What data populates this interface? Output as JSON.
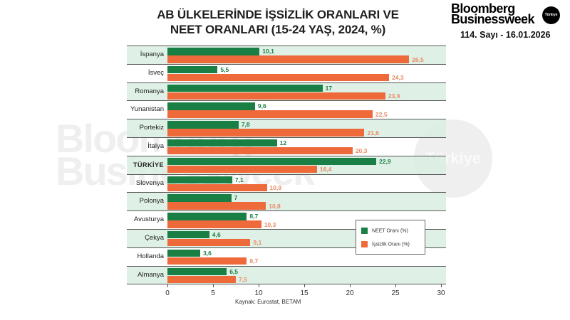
{
  "header": {
    "title_line1": "AB ÜLKELERİNDE İŞSİZLİK ORANLARI VE",
    "title_line2": "NEET ORANLARI (15-24 YAŞ, 2024, %)"
  },
  "brand": {
    "line1": "Bloomberg",
    "line2": "Businessweek",
    "badge": "Türkiye",
    "issue": "114. Sayı - 16.01.2026"
  },
  "watermark": {
    "line1": "Bloomberg",
    "line2": "Businessweek",
    "badge": "Türkiye"
  },
  "colors": {
    "neet": "#1a7f45",
    "unemployment": "#ee6a3a",
    "row_shade": "#d9eee2"
  },
  "legend": {
    "neet_label": "NEET Oranı (%)",
    "unemployment_label": "İşsizlik Oranı (%)"
  },
  "source": "Kaynak: Eurostat, BETAM",
  "chart_data": {
    "type": "bar",
    "orientation": "horizontal",
    "title": "AB ÜLKELERİNDE İŞSİZLİK ORANLARI VE NEET ORANLARI (15-24 YAŞ, 2024, %)",
    "xlabel": "",
    "ylabel": "",
    "xlim": [
      0,
      30
    ],
    "xticks": [
      0,
      5,
      10,
      15,
      20,
      25,
      30
    ],
    "legend_position": "lower right",
    "categories": [
      "İspanya",
      "İsveç",
      "Romanya",
      "Yunanistan",
      "Portekiz",
      "İtalya",
      "TÜRKİYE",
      "Slovenya",
      "Polonya",
      "Avusturya",
      "Çekya",
      "Hollanda",
      "Almanya"
    ],
    "series": [
      {
        "name": "NEET Oranı (%)",
        "color": "#1a7f45",
        "values": [
          10.1,
          5.5,
          17,
          9.6,
          7.8,
          12,
          22.9,
          7.1,
          7,
          8.7,
          4.6,
          3.6,
          6.5
        ],
        "labels": [
          "10,1",
          "5,5",
          "17",
          "9,6",
          "7,8",
          "12",
          "22,9",
          "7,1",
          "7",
          "8,7",
          "4,6",
          "3,6",
          "6,5"
        ]
      },
      {
        "name": "İşsizlik Oranı (%)",
        "color": "#ee6a3a",
        "values": [
          26.5,
          24.3,
          23.9,
          22.5,
          21.6,
          20.3,
          16.4,
          10.9,
          10.8,
          10.3,
          9.1,
          8.7,
          7.5
        ],
        "labels": [
          "26,5",
          "24,3",
          "23,9",
          "22,5",
          "21,6",
          "20,3",
          "16,4",
          "10,9",
          "10,8",
          "10,3",
          "9,1",
          "8,7",
          "7,5"
        ]
      }
    ],
    "source": "Kaynak: Eurostat, BETAM"
  }
}
